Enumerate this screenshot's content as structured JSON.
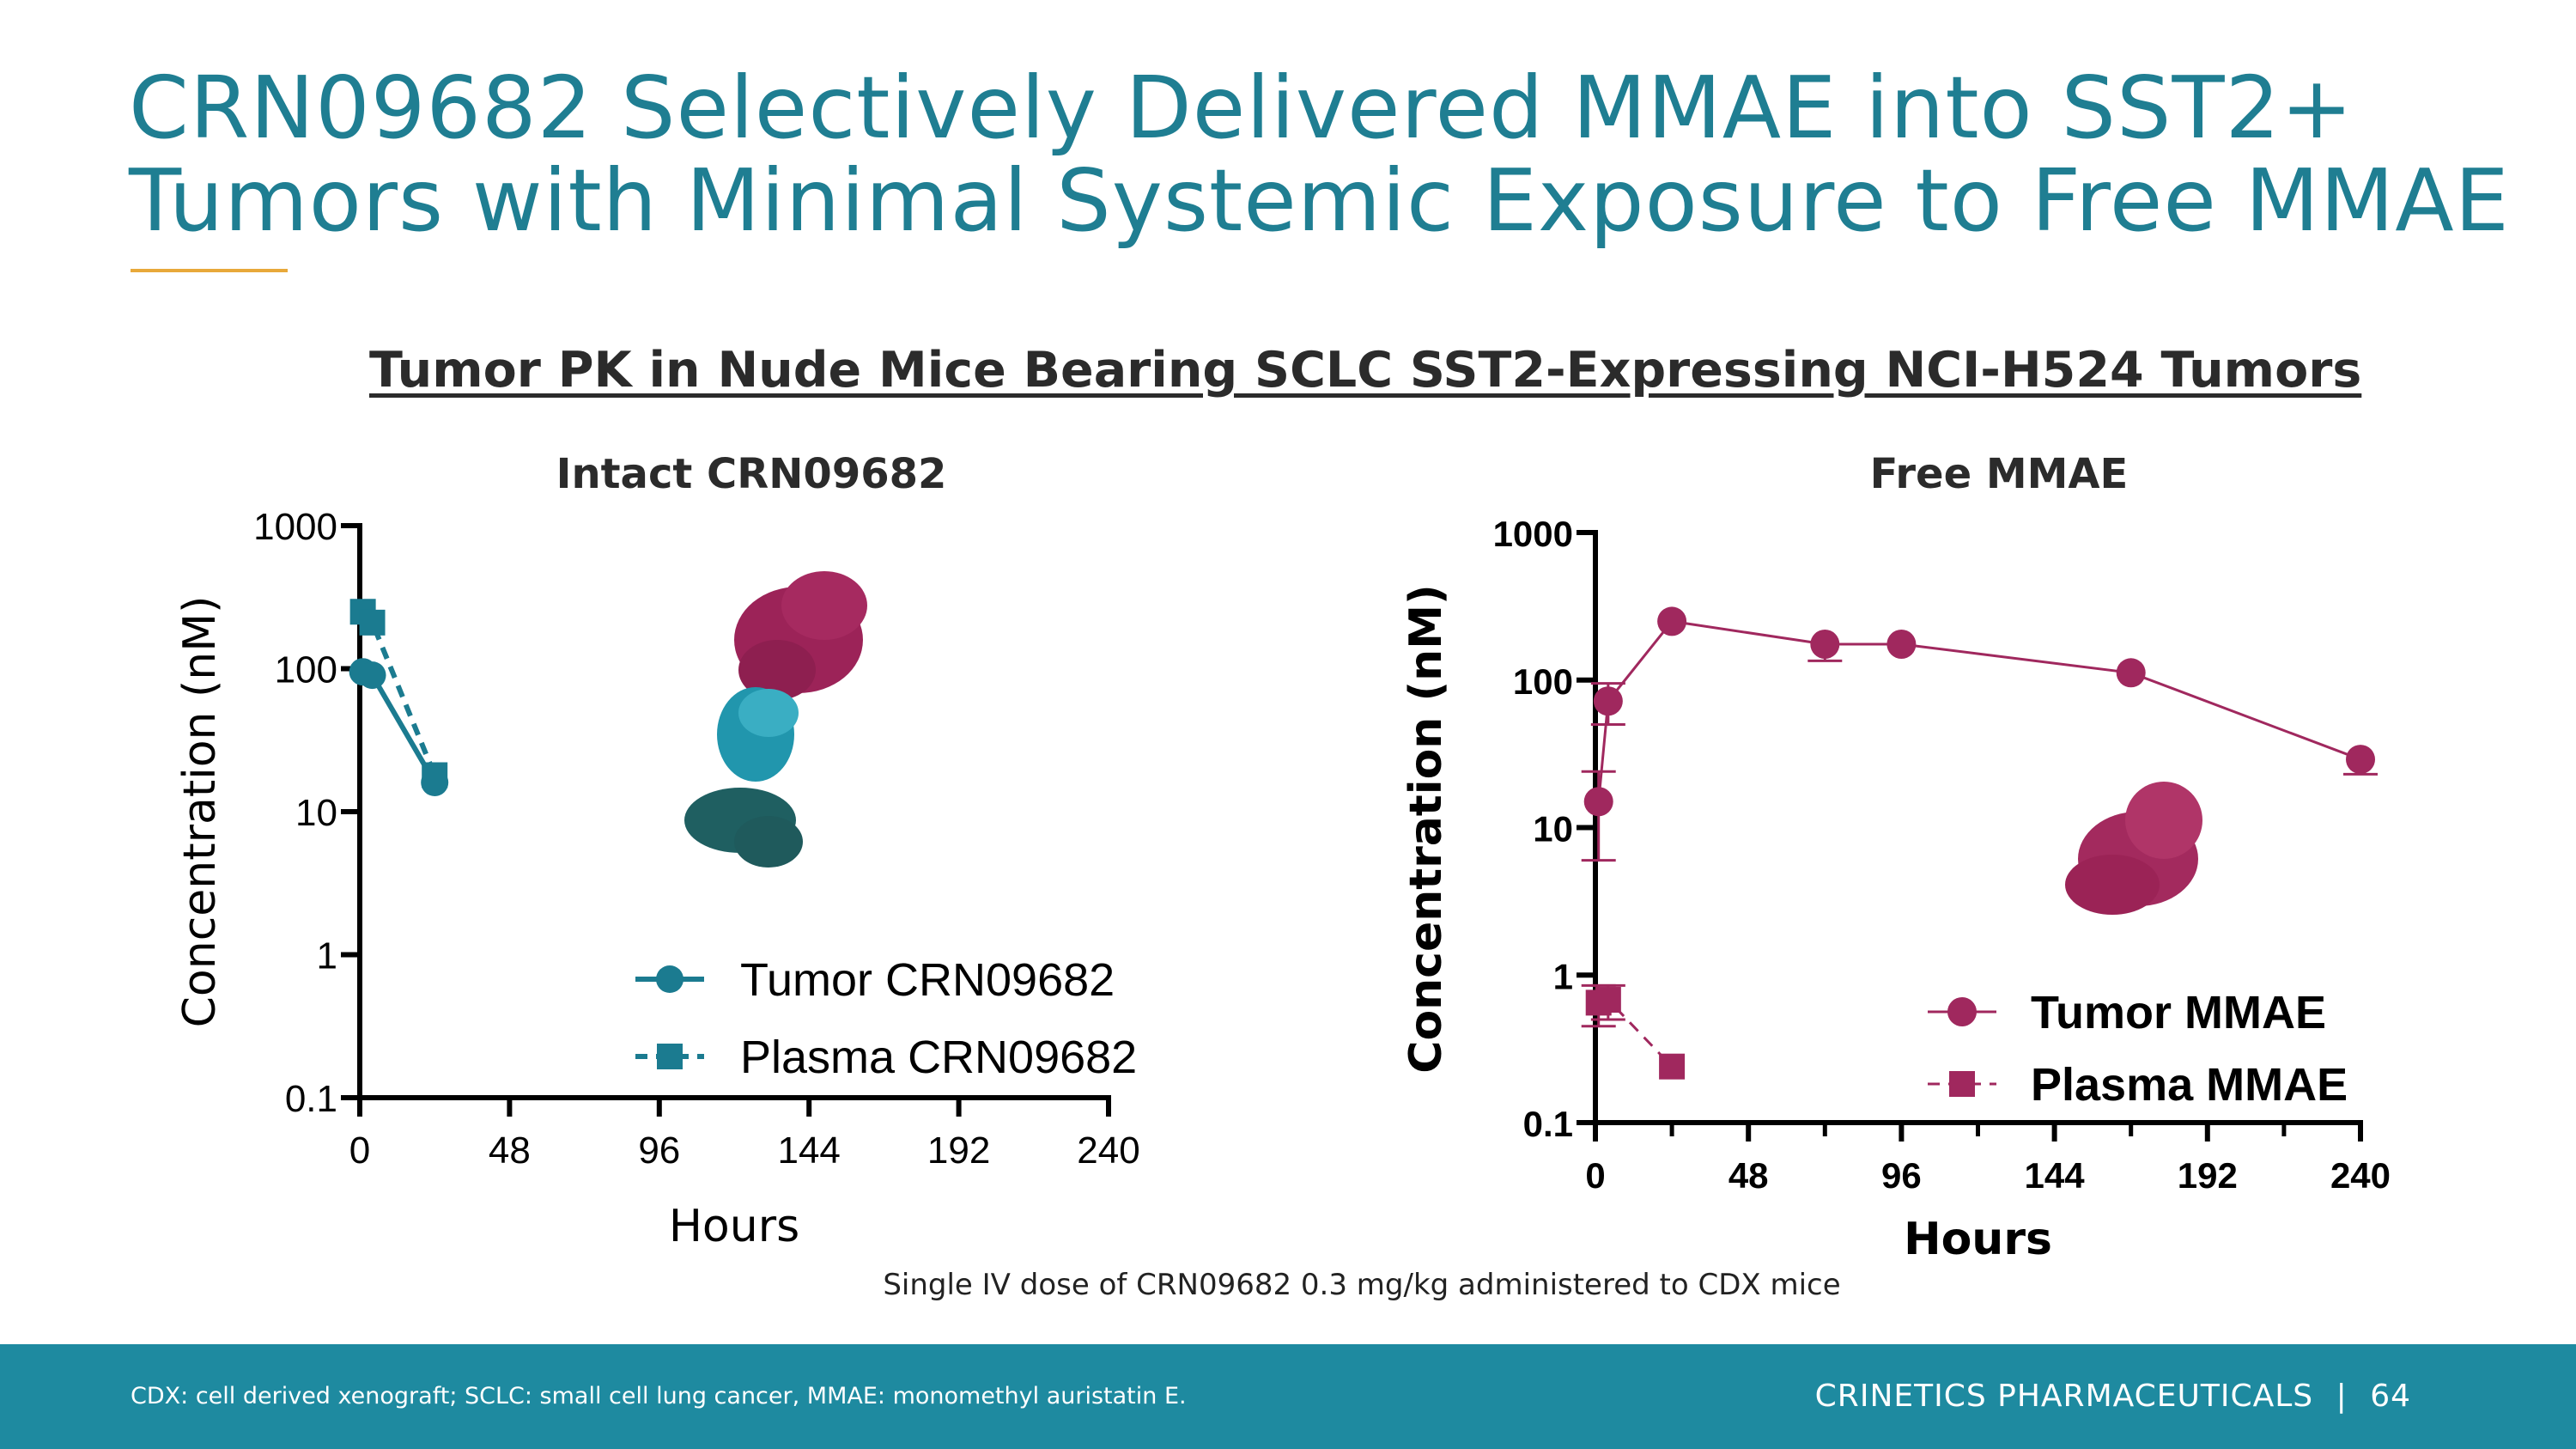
{
  "slide": {
    "title_line1": "CRN09682 Selectively Delivered MMAE into SST2+",
    "title_line2": "Tumors with Minimal Systemic Exposure to Free MMAE",
    "subtitle": "Tumor PK in Nude Mice Bearing SCLC SST2-Expressing NCI-H524 Tumors",
    "caption": "Single IV dose of CRN09682 0.3 mg/kg administered to CDX mice",
    "footnote": "CDX: cell derived xenograft; SCLC: small cell lung cancer, MMAE: monomethyl auristatin E.",
    "brand": "CRINETICS PHARMACEUTICALS",
    "separator": "|",
    "page_number": "64",
    "colors": {
      "title": "#1f7e92",
      "accent_line": "#e8a93a",
      "footer": "#1e8aa0"
    }
  },
  "chart_data": [
    {
      "type": "line",
      "title": "Intact CRN09682",
      "xlabel": "Hours",
      "ylabel": "Concentration (nM)",
      "xlim": [
        0,
        240
      ],
      "ylim": [
        0.1,
        1000
      ],
      "yscale": "log",
      "xticks": [
        "0",
        "48",
        "96",
        "144",
        "192",
        "240"
      ],
      "yticks": [
        "0.1",
        "1",
        "10",
        "100",
        "1000"
      ],
      "legend_position": "bottom-right",
      "color": "#1b7b90",
      "series": [
        {
          "name": "Tumor CRN09682",
          "marker": "circle",
          "line": "solid",
          "x": [
            1,
            4,
            24
          ],
          "y": [
            95,
            90,
            16
          ]
        },
        {
          "name": "Plasma CRN09682",
          "marker": "square",
          "line": "dashed",
          "x": [
            1,
            4,
            24
          ],
          "y": [
            250,
            210,
            18
          ]
        }
      ]
    },
    {
      "type": "line",
      "title": "Free MMAE",
      "xlabel": "Hours",
      "ylabel": "Concentration (nM)",
      "xlim": [
        0,
        240
      ],
      "ylim": [
        0.1,
        1000
      ],
      "yscale": "log",
      "xticks": [
        "0",
        "48",
        "96",
        "144",
        "192",
        "240"
      ],
      "yticks": [
        "0.1",
        "1",
        "10",
        "100",
        "1000"
      ],
      "legend_position": "bottom-right",
      "color": "#a0285e",
      "series": [
        {
          "name": "Tumor MMAE",
          "marker": "circle",
          "line": "solid",
          "x": [
            1,
            4,
            24,
            72,
            96,
            168,
            240
          ],
          "y": [
            15,
            72,
            250,
            175,
            175,
            112,
            29
          ],
          "err_low": [
            6,
            50,
            null,
            135,
            null,
            null,
            23
          ],
          "err_high": [
            24,
            95,
            null,
            null,
            null,
            null,
            null
          ]
        },
        {
          "name": "Plasma MMAE",
          "marker": "square",
          "line": "dashed",
          "x": [
            1,
            4,
            24
          ],
          "y": [
            0.65,
            0.68,
            0.24
          ],
          "err_low": [
            0.45,
            0.5,
            null
          ],
          "err_high": [
            0.85,
            0.85,
            null
          ]
        }
      ]
    }
  ]
}
